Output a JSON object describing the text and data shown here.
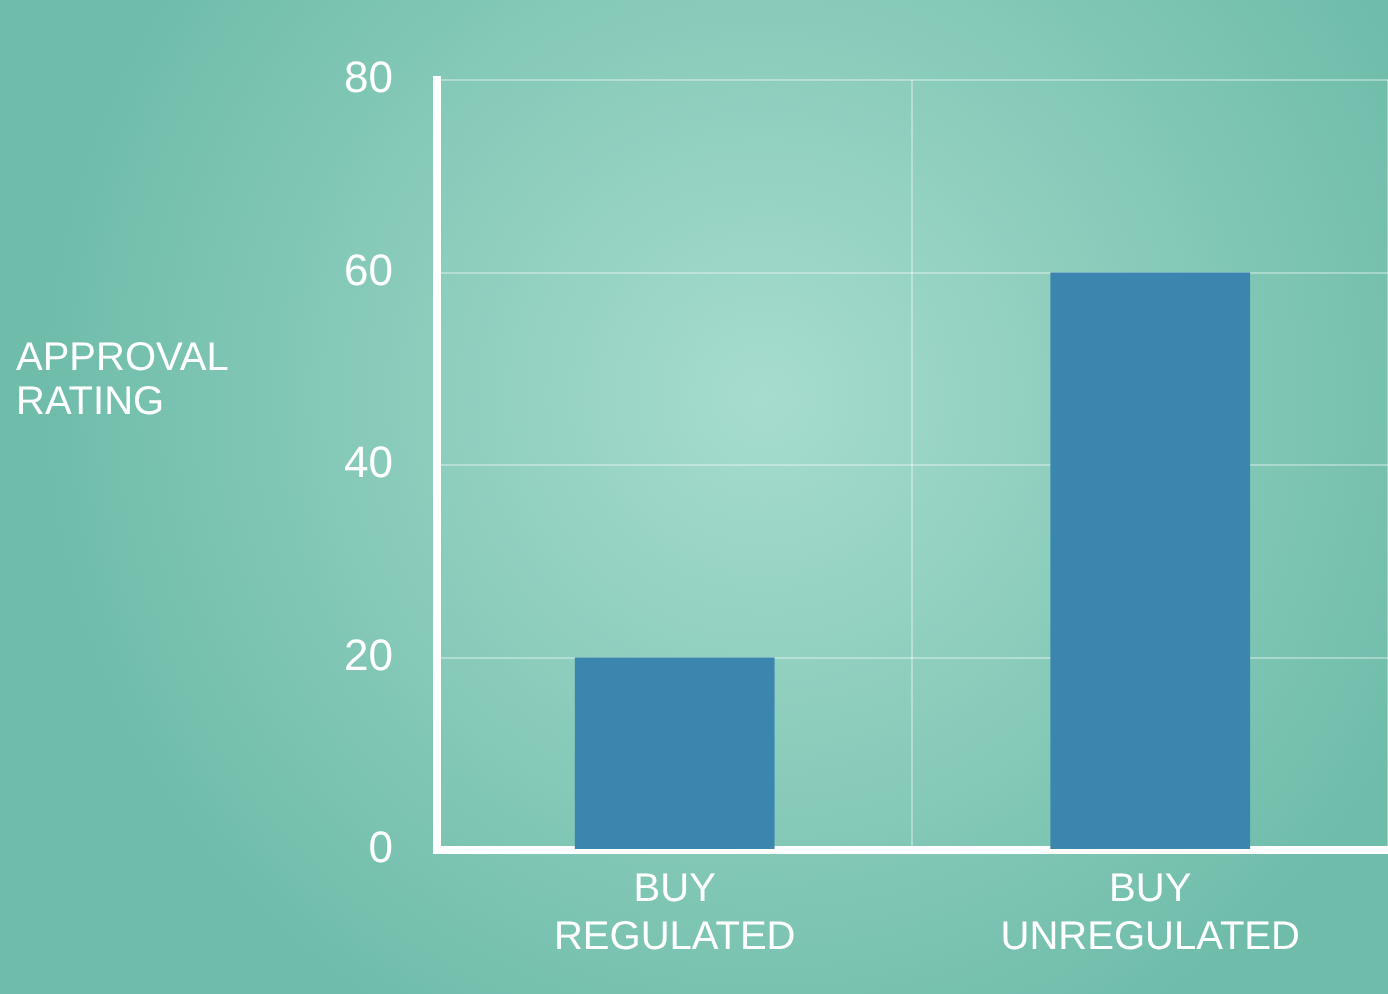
{
  "chart_data": {
    "type": "bar",
    "ylabel": "APPROVAL RATING",
    "categories": [
      "BUY REGULATED",
      "BUY UNREGULATED"
    ],
    "values": [
      20,
      60
    ],
    "color": "#3a86ae",
    "ylim": [
      0,
      80
    ],
    "yticks": [
      0,
      20,
      40,
      60,
      80
    ],
    "grid": true
  }
}
